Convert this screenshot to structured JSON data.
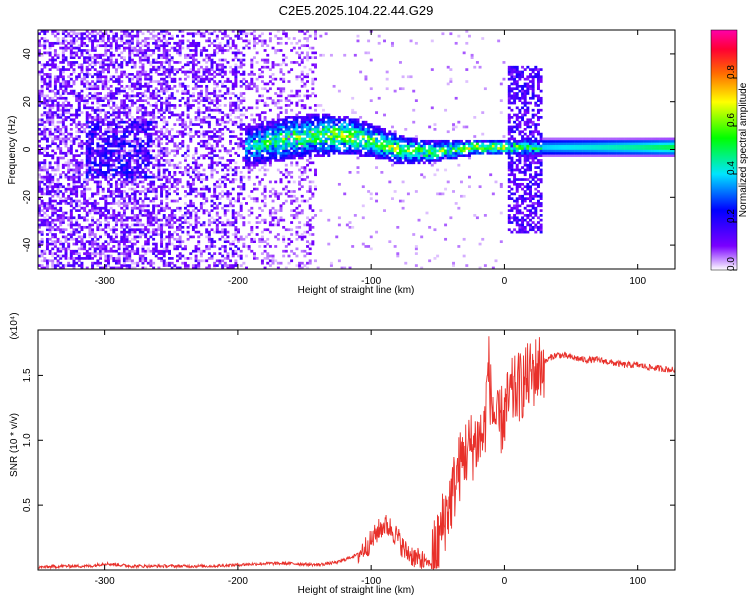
{
  "title": "C2E5.2025.104.22.44.G29",
  "chart_data": [
    {
      "type": "heatmap",
      "title": "C2E5.2025.104.22.44.G29",
      "xlabel": "Height of straight line (km)",
      "ylabel": "Frequency (Hz)",
      "xlim": [
        -350,
        128
      ],
      "ylim": [
        -50,
        50
      ],
      "xticks": [
        -300,
        -200,
        -100,
        0,
        100
      ],
      "yticks": [
        -40,
        -20,
        0,
        20,
        40
      ],
      "colorbar": {
        "label": "Normalized spectral amplitude",
        "range": [
          0,
          1
        ],
        "ticks": [
          0.0,
          0.2,
          0.4,
          0.6,
          0.8
        ],
        "tick_labels": [
          "0.0",
          "0.2",
          "0.4",
          "0.6",
          "0.8"
        ],
        "colormap": [
          "#ffffff",
          "#7a00ff",
          "#0000ff",
          "#00e5ff",
          "#00ff00",
          "#ffff00",
          "#ff6a00",
          "#ff0033",
          "#ff00aa"
        ]
      },
      "band": [
        {
          "x": -195,
          "center": 1,
          "width": 8,
          "level": 0.35
        },
        {
          "x": -180,
          "center": 3,
          "width": 9,
          "level": 0.45
        },
        {
          "x": -160,
          "center": 5,
          "width": 9,
          "level": 0.5
        },
        {
          "x": -140,
          "center": 6,
          "width": 9,
          "level": 0.5
        },
        {
          "x": -120,
          "center": 6,
          "width": 8,
          "level": 0.55
        },
        {
          "x": -100,
          "center": 4,
          "width": 7,
          "level": 0.5
        },
        {
          "x": -80,
          "center": 0,
          "width": 6,
          "level": 0.55
        },
        {
          "x": -60,
          "center": -1,
          "width": 5,
          "level": 0.5
        },
        {
          "x": -40,
          "center": 0,
          "width": 4,
          "level": 0.5
        },
        {
          "x": -20,
          "center": 1,
          "width": 3,
          "level": 0.6
        },
        {
          "x": 0,
          "center": 1,
          "width": 3,
          "level": 0.6
        },
        {
          "x": 28,
          "center": 1,
          "width": 4,
          "level": 0.42
        },
        {
          "x": 60,
          "center": 1,
          "width": 4,
          "level": 0.45
        },
        {
          "x": 100,
          "center": 1,
          "width": 4,
          "level": 0.5
        },
        {
          "x": 128,
          "center": 1,
          "width": 4,
          "level": 0.55
        }
      ]
    },
    {
      "type": "line",
      "xlabel": "Height of straight line (km)",
      "ylabel": "SNR (10 * v/v)",
      "y_multiplier": "(x10⁴)",
      "xlim": [
        -350,
        128
      ],
      "ylim": [
        0,
        1.85
      ],
      "xticks": [
        -300,
        -200,
        -100,
        0,
        100
      ],
      "yticks": [
        0.5,
        1.0,
        1.5
      ],
      "ytick_labels": [
        "0.5",
        "1.0",
        "1.5"
      ],
      "color": "#e8302a",
      "series": [
        {
          "x": [
            -350,
            -330,
            -310,
            -300,
            -280,
            -260,
            -240,
            -220,
            -200,
            -180,
            -160,
            -140,
            -125,
            -110,
            -100,
            -95,
            -90,
            -85,
            -80,
            -75,
            -70,
            -65,
            -60,
            -55,
            -50,
            -45,
            -40,
            -35,
            -30,
            -25,
            -20,
            -15,
            -12,
            -10,
            -5,
            0,
            5,
            10,
            15,
            20,
            25,
            30,
            35,
            40,
            50,
            60,
            70,
            80,
            90,
            100,
            110,
            120,
            128
          ],
          "y": [
            0.02,
            0.03,
            0.03,
            0.05,
            0.03,
            0.03,
            0.03,
            0.03,
            0.04,
            0.05,
            0.05,
            0.04,
            0.06,
            0.12,
            0.22,
            0.3,
            0.35,
            0.32,
            0.25,
            0.15,
            0.12,
            0.08,
            0.06,
            0.05,
            0.2,
            0.4,
            0.55,
            0.75,
            0.9,
            0.95,
            1.0,
            1.05,
            1.6,
            1.3,
            1.1,
            1.2,
            1.35,
            1.4,
            1.45,
            1.5,
            1.55,
            1.6,
            1.64,
            1.66,
            1.64,
            1.62,
            1.62,
            1.6,
            1.58,
            1.58,
            1.56,
            1.55,
            1.54
          ]
        }
      ]
    }
  ]
}
